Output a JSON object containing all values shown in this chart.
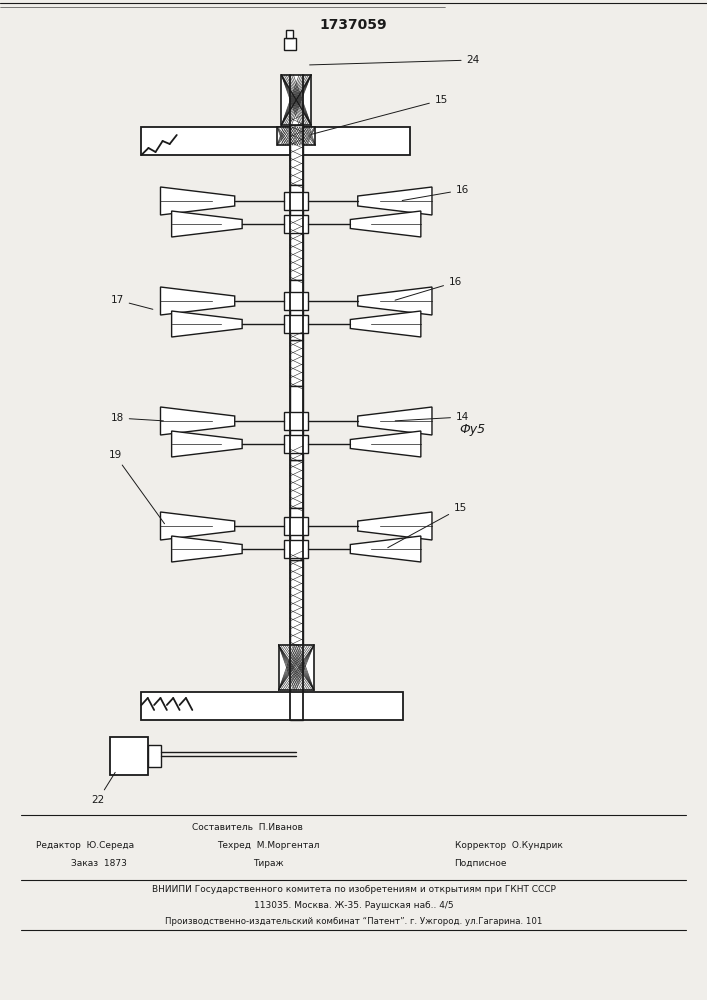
{
  "title": "1737059",
  "fig_label": "Фу5",
  "background_color": "#f0eeea",
  "line_color": "#1a1a1a",
  "footer_line0": "Составитель  П.Иванов",
  "footer_line1_left": "Редактор  Ю.Середа",
  "footer_line1_mid": "Техред  М.Моргентал",
  "footer_line1_right": "Корректор  О.Кундрик",
  "footer_line2_left": "Заказ  1873",
  "footer_line2_mid": "Тираж",
  "footer_line2_right": "Подписное",
  "footer_line3": "ВНИИПИ Государственного комитета по изобретениям и открытиям при ГКНТ СССР",
  "footer_line4": "113035. Москва. Ж-35. Раушская наб.. 4/5",
  "footer_line5": "Производственно-издательский комбинат “Патент”. г. Ужгород. ул.Гагарина. 101"
}
